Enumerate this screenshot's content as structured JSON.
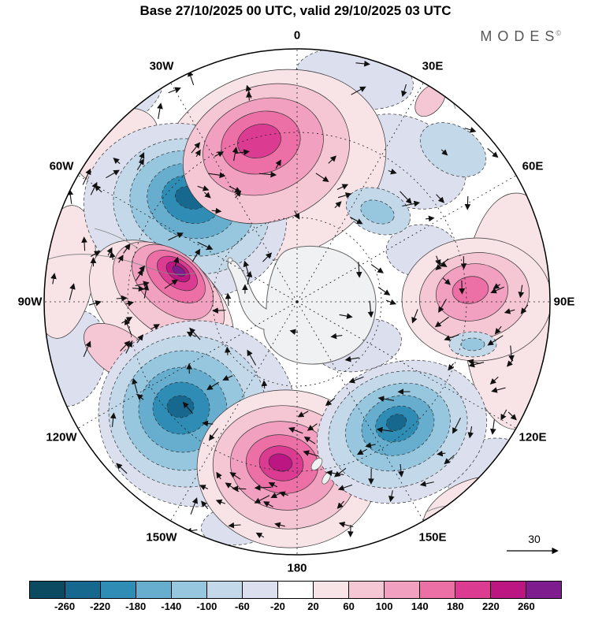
{
  "header": {
    "title": "Base 27/10/2025 00 UTC, valid 29/10/2025 03 UTC",
    "logo": "MODES",
    "logo_mark": "©"
  },
  "map": {
    "lon_labels": [
      "0",
      "30E",
      "60E",
      "90E",
      "120E",
      "150E",
      "180",
      "150W",
      "120W",
      "90W",
      "60W",
      "30W"
    ]
  },
  "vector_scale": {
    "value": "30"
  },
  "colorbar": {
    "ticks": [
      "-260",
      "-220",
      "-180",
      "-140",
      "-100",
      "-60",
      "-20",
      "20",
      "60",
      "100",
      "140",
      "180",
      "220",
      "260"
    ],
    "colors": [
      "#0b4a60",
      "#16688e",
      "#2f8cb4",
      "#66adce",
      "#97c7de",
      "#c3d9ea",
      "#dcdfee",
      "#ffffff",
      "#f8e3e6",
      "#f5c6d3",
      "#f1a0bf",
      "#ec6fa6",
      "#dc3b92",
      "#bb1682",
      "#7e1d8d"
    ]
  }
}
